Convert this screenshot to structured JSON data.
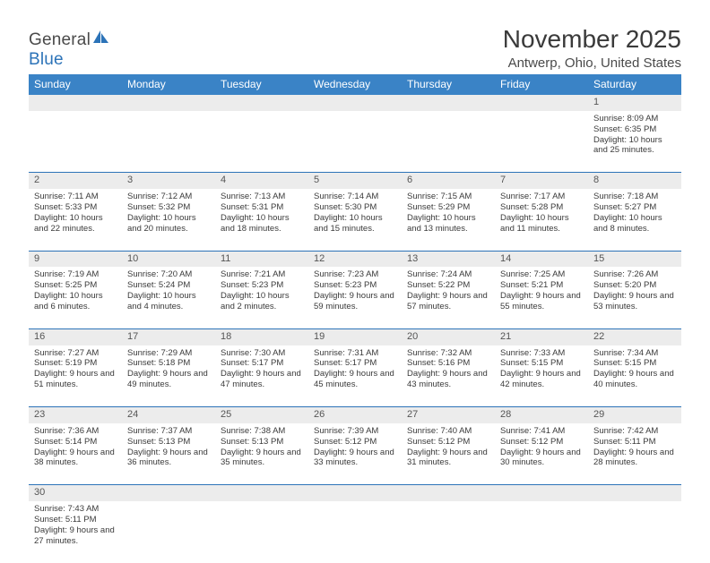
{
  "brand": {
    "part1": "General",
    "part2": "Blue"
  },
  "title": "November 2025",
  "location": "Antwerp, Ohio, United States",
  "colors": {
    "header_bg": "#3a83c6",
    "header_text": "#ffffff",
    "border": "#2c73b8",
    "daynum_bg": "#ececec",
    "text": "#3a3a3a",
    "logo_gray": "#4a4a4a",
    "logo_blue": "#2c73b8"
  },
  "day_headers": [
    "Sunday",
    "Monday",
    "Tuesday",
    "Wednesday",
    "Thursday",
    "Friday",
    "Saturday"
  ],
  "weeks": [
    {
      "nums": [
        "",
        "",
        "",
        "",
        "",
        "",
        "1"
      ],
      "cells": [
        null,
        null,
        null,
        null,
        null,
        null,
        {
          "sr": "Sunrise: 8:09 AM",
          "ss": "Sunset: 6:35 PM",
          "dl": "Daylight: 10 hours and 25 minutes."
        }
      ]
    },
    {
      "nums": [
        "2",
        "3",
        "4",
        "5",
        "6",
        "7",
        "8"
      ],
      "cells": [
        {
          "sr": "Sunrise: 7:11 AM",
          "ss": "Sunset: 5:33 PM",
          "dl": "Daylight: 10 hours and 22 minutes."
        },
        {
          "sr": "Sunrise: 7:12 AM",
          "ss": "Sunset: 5:32 PM",
          "dl": "Daylight: 10 hours and 20 minutes."
        },
        {
          "sr": "Sunrise: 7:13 AM",
          "ss": "Sunset: 5:31 PM",
          "dl": "Daylight: 10 hours and 18 minutes."
        },
        {
          "sr": "Sunrise: 7:14 AM",
          "ss": "Sunset: 5:30 PM",
          "dl": "Daylight: 10 hours and 15 minutes."
        },
        {
          "sr": "Sunrise: 7:15 AM",
          "ss": "Sunset: 5:29 PM",
          "dl": "Daylight: 10 hours and 13 minutes."
        },
        {
          "sr": "Sunrise: 7:17 AM",
          "ss": "Sunset: 5:28 PM",
          "dl": "Daylight: 10 hours and 11 minutes."
        },
        {
          "sr": "Sunrise: 7:18 AM",
          "ss": "Sunset: 5:27 PM",
          "dl": "Daylight: 10 hours and 8 minutes."
        }
      ]
    },
    {
      "nums": [
        "9",
        "10",
        "11",
        "12",
        "13",
        "14",
        "15"
      ],
      "cells": [
        {
          "sr": "Sunrise: 7:19 AM",
          "ss": "Sunset: 5:25 PM",
          "dl": "Daylight: 10 hours and 6 minutes."
        },
        {
          "sr": "Sunrise: 7:20 AM",
          "ss": "Sunset: 5:24 PM",
          "dl": "Daylight: 10 hours and 4 minutes."
        },
        {
          "sr": "Sunrise: 7:21 AM",
          "ss": "Sunset: 5:23 PM",
          "dl": "Daylight: 10 hours and 2 minutes."
        },
        {
          "sr": "Sunrise: 7:23 AM",
          "ss": "Sunset: 5:23 PM",
          "dl": "Daylight: 9 hours and 59 minutes."
        },
        {
          "sr": "Sunrise: 7:24 AM",
          "ss": "Sunset: 5:22 PM",
          "dl": "Daylight: 9 hours and 57 minutes."
        },
        {
          "sr": "Sunrise: 7:25 AM",
          "ss": "Sunset: 5:21 PM",
          "dl": "Daylight: 9 hours and 55 minutes."
        },
        {
          "sr": "Sunrise: 7:26 AM",
          "ss": "Sunset: 5:20 PM",
          "dl": "Daylight: 9 hours and 53 minutes."
        }
      ]
    },
    {
      "nums": [
        "16",
        "17",
        "18",
        "19",
        "20",
        "21",
        "22"
      ],
      "cells": [
        {
          "sr": "Sunrise: 7:27 AM",
          "ss": "Sunset: 5:19 PM",
          "dl": "Daylight: 9 hours and 51 minutes."
        },
        {
          "sr": "Sunrise: 7:29 AM",
          "ss": "Sunset: 5:18 PM",
          "dl": "Daylight: 9 hours and 49 minutes."
        },
        {
          "sr": "Sunrise: 7:30 AM",
          "ss": "Sunset: 5:17 PM",
          "dl": "Daylight: 9 hours and 47 minutes."
        },
        {
          "sr": "Sunrise: 7:31 AM",
          "ss": "Sunset: 5:17 PM",
          "dl": "Daylight: 9 hours and 45 minutes."
        },
        {
          "sr": "Sunrise: 7:32 AM",
          "ss": "Sunset: 5:16 PM",
          "dl": "Daylight: 9 hours and 43 minutes."
        },
        {
          "sr": "Sunrise: 7:33 AM",
          "ss": "Sunset: 5:15 PM",
          "dl": "Daylight: 9 hours and 42 minutes."
        },
        {
          "sr": "Sunrise: 7:34 AM",
          "ss": "Sunset: 5:15 PM",
          "dl": "Daylight: 9 hours and 40 minutes."
        }
      ]
    },
    {
      "nums": [
        "23",
        "24",
        "25",
        "26",
        "27",
        "28",
        "29"
      ],
      "cells": [
        {
          "sr": "Sunrise: 7:36 AM",
          "ss": "Sunset: 5:14 PM",
          "dl": "Daylight: 9 hours and 38 minutes."
        },
        {
          "sr": "Sunrise: 7:37 AM",
          "ss": "Sunset: 5:13 PM",
          "dl": "Daylight: 9 hours and 36 minutes."
        },
        {
          "sr": "Sunrise: 7:38 AM",
          "ss": "Sunset: 5:13 PM",
          "dl": "Daylight: 9 hours and 35 minutes."
        },
        {
          "sr": "Sunrise: 7:39 AM",
          "ss": "Sunset: 5:12 PM",
          "dl": "Daylight: 9 hours and 33 minutes."
        },
        {
          "sr": "Sunrise: 7:40 AM",
          "ss": "Sunset: 5:12 PM",
          "dl": "Daylight: 9 hours and 31 minutes."
        },
        {
          "sr": "Sunrise: 7:41 AM",
          "ss": "Sunset: 5:12 PM",
          "dl": "Daylight: 9 hours and 30 minutes."
        },
        {
          "sr": "Sunrise: 7:42 AM",
          "ss": "Sunset: 5:11 PM",
          "dl": "Daylight: 9 hours and 28 minutes."
        }
      ]
    },
    {
      "nums": [
        "30",
        "",
        "",
        "",
        "",
        "",
        ""
      ],
      "cells": [
        {
          "sr": "Sunrise: 7:43 AM",
          "ss": "Sunset: 5:11 PM",
          "dl": "Daylight: 9 hours and 27 minutes."
        },
        null,
        null,
        null,
        null,
        null,
        null
      ]
    }
  ]
}
